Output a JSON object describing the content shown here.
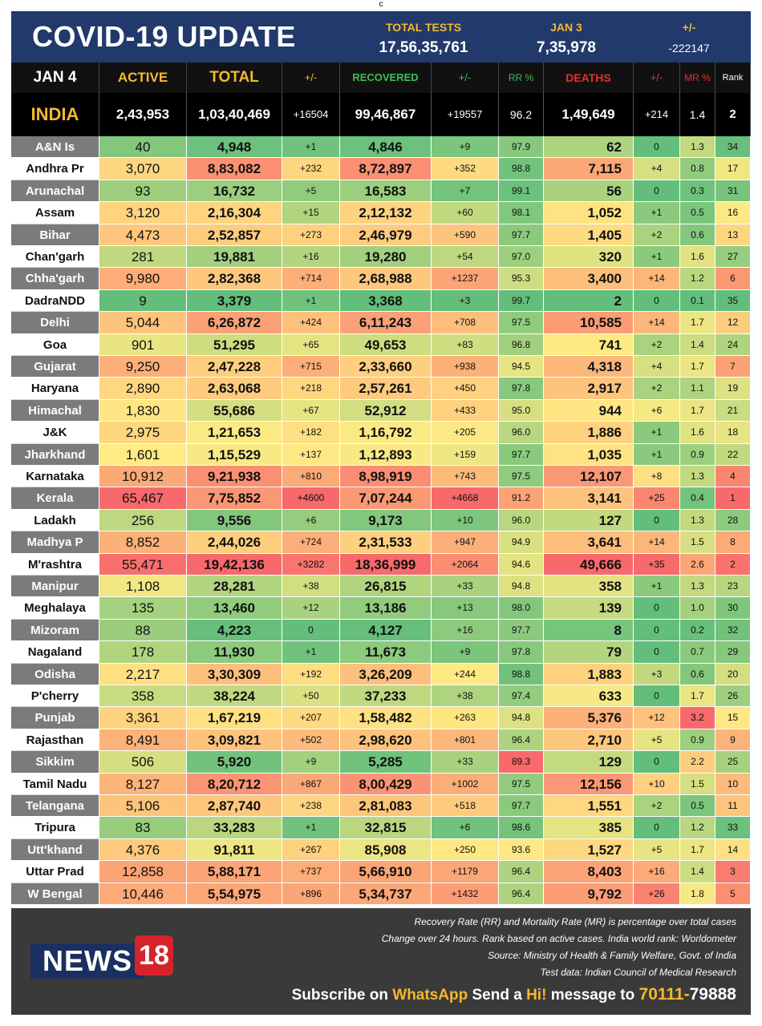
{
  "top_mark": "c",
  "header": {
    "title": "COVID-19 UPDATE",
    "total_tests_label": "TOTAL TESTS",
    "total_tests_value": "17,56,35,761",
    "date_label": "JAN 3",
    "date_value": "7,35,978",
    "change_label": "+/-",
    "change_value": "-222147"
  },
  "columns": {
    "date": "JAN 4",
    "active": "ACTIVE",
    "total": "TOTAL",
    "total_change": "+/-",
    "recovered": "RECOVERED",
    "recovered_change": "+/-",
    "rr": "RR %",
    "deaths": "DEATHS",
    "deaths_change": "+/-",
    "mr": "MR %",
    "rank": "Rank"
  },
  "colors": {
    "header_bg": "#22396b",
    "accent_yellow": "#f5b82e",
    "recovered_green": "#3fbf4f",
    "deaths_red": "#e8312a",
    "footer_bg": "#3a3a3a",
    "news_red": "#d6232a"
  },
  "india": {
    "name": "INDIA",
    "active": "2,43,953",
    "total": "1,03,40,469",
    "total_change": "+16504",
    "recovered": "99,46,867",
    "recovered_change": "+19557",
    "rr": "96.2",
    "deaths": "1,49,649",
    "deaths_change": "+214",
    "mr": "1.4",
    "rank": "2"
  },
  "states": [
    {
      "name": "A&N Is",
      "active": "40",
      "total": "4,948",
      "total_change": "+1",
      "recovered": "4,846",
      "recovered_change": "+9",
      "rr": "97.9",
      "deaths": "62",
      "deaths_change": "0",
      "mr": "1.3",
      "rank": "34"
    },
    {
      "name": "Andhra Pr",
      "active": "3,070",
      "total": "8,83,082",
      "total_change": "+232",
      "recovered": "8,72,897",
      "recovered_change": "+352",
      "rr": "98.8",
      "deaths": "7,115",
      "deaths_change": "+4",
      "mr": "0.8",
      "rank": "17"
    },
    {
      "name": "Arunachal",
      "active": "93",
      "total": "16,732",
      "total_change": "+5",
      "recovered": "16,583",
      "recovered_change": "+7",
      "rr": "99.1",
      "deaths": "56",
      "deaths_change": "0",
      "mr": "0.3",
      "rank": "31"
    },
    {
      "name": "Assam",
      "active": "3,120",
      "total": "2,16,304",
      "total_change": "+15",
      "recovered": "2,12,132",
      "recovered_change": "+60",
      "rr": "98.1",
      "deaths": "1,052",
      "deaths_change": "+1",
      "mr": "0.5",
      "rank": "16"
    },
    {
      "name": "Bihar",
      "active": "4,473",
      "total": "2,52,857",
      "total_change": "+273",
      "recovered": "2,46,979",
      "recovered_change": "+590",
      "rr": "97.7",
      "deaths": "1,405",
      "deaths_change": "+2",
      "mr": "0.6",
      "rank": "13"
    },
    {
      "name": "Chan'garh",
      "active": "281",
      "total": "19,881",
      "total_change": "+16",
      "recovered": "19,280",
      "recovered_change": "+54",
      "rr": "97.0",
      "deaths": "320",
      "deaths_change": "+1",
      "mr": "1.6",
      "rank": "27"
    },
    {
      "name": "Chha'garh",
      "active": "9,980",
      "total": "2,82,368",
      "total_change": "+714",
      "recovered": "2,68,988",
      "recovered_change": "+1237",
      "rr": "95.3",
      "deaths": "3,400",
      "deaths_change": "+14",
      "mr": "1.2",
      "rank": "6"
    },
    {
      "name": "DadraNDD",
      "active": "9",
      "total": "3,379",
      "total_change": "+1",
      "recovered": "3,368",
      "recovered_change": "+3",
      "rr": "99.7",
      "deaths": "2",
      "deaths_change": "0",
      "mr": "0.1",
      "rank": "35"
    },
    {
      "name": "Delhi",
      "active": "5,044",
      "total": "6,26,872",
      "total_change": "+424",
      "recovered": "6,11,243",
      "recovered_change": "+708",
      "rr": "97.5",
      "deaths": "10,585",
      "deaths_change": "+14",
      "mr": "1.7",
      "rank": "12"
    },
    {
      "name": "Goa",
      "active": "901",
      "total": "51,295",
      "total_change": "+65",
      "recovered": "49,653",
      "recovered_change": "+83",
      "rr": "96.8",
      "deaths": "741",
      "deaths_change": "+2",
      "mr": "1.4",
      "rank": "24"
    },
    {
      "name": "Gujarat",
      "active": "9,250",
      "total": "2,47,228",
      "total_change": "+715",
      "recovered": "2,33,660",
      "recovered_change": "+938",
      "rr": "94.5",
      "deaths": "4,318",
      "deaths_change": "+4",
      "mr": "1.7",
      "rank": "7"
    },
    {
      "name": "Haryana",
      "active": "2,890",
      "total": "2,63,068",
      "total_change": "+218",
      "recovered": "2,57,261",
      "recovered_change": "+450",
      "rr": "97.8",
      "deaths": "2,917",
      "deaths_change": "+2",
      "mr": "1.1",
      "rank": "19"
    },
    {
      "name": "Himachal",
      "active": "1,830",
      "total": "55,686",
      "total_change": "+67",
      "recovered": "52,912",
      "recovered_change": "+433",
      "rr": "95.0",
      "deaths": "944",
      "deaths_change": "+6",
      "mr": "1.7",
      "rank": "21"
    },
    {
      "name": "J&K",
      "active": "2,975",
      "total": "1,21,653",
      "total_change": "+182",
      "recovered": "1,16,792",
      "recovered_change": "+205",
      "rr": "96.0",
      "deaths": "1,886",
      "deaths_change": "+1",
      "mr": "1.6",
      "rank": "18"
    },
    {
      "name": "Jharkhand",
      "active": "1,601",
      "total": "1,15,529",
      "total_change": "+137",
      "recovered": "1,12,893",
      "recovered_change": "+159",
      "rr": "97.7",
      "deaths": "1,035",
      "deaths_change": "+1",
      "mr": "0.9",
      "rank": "22"
    },
    {
      "name": "Karnataka",
      "active": "10,912",
      "total": "9,21,938",
      "total_change": "+810",
      "recovered": "8,98,919",
      "recovered_change": "+743",
      "rr": "97.5",
      "deaths": "12,107",
      "deaths_change": "+8",
      "mr": "1.3",
      "rank": "4"
    },
    {
      "name": "Kerala",
      "active": "65,467",
      "total": "7,75,852",
      "total_change": "+4600",
      "recovered": "7,07,244",
      "recovered_change": "+4668",
      "rr": "91.2",
      "deaths": "3,141",
      "deaths_change": "+25",
      "mr": "0.4",
      "rank": "1"
    },
    {
      "name": "Ladakh",
      "active": "256",
      "total": "9,556",
      "total_change": "+6",
      "recovered": "9,173",
      "recovered_change": "+10",
      "rr": "96.0",
      "deaths": "127",
      "deaths_change": "0",
      "mr": "1.3",
      "rank": "28"
    },
    {
      "name": "Madhya P",
      "active": "8,852",
      "total": "2,44,026",
      "total_change": "+724",
      "recovered": "2,31,533",
      "recovered_change": "+947",
      "rr": "94.9",
      "deaths": "3,641",
      "deaths_change": "+14",
      "mr": "1.5",
      "rank": "8"
    },
    {
      "name": "M'rashtra",
      "active": "55,471",
      "total": "19,42,136",
      "total_change": "+3282",
      "recovered": "18,36,999",
      "recovered_change": "+2064",
      "rr": "94.6",
      "deaths": "49,666",
      "deaths_change": "+35",
      "mr": "2.6",
      "rank": "2"
    },
    {
      "name": "Manipur",
      "active": "1,108",
      "total": "28,281",
      "total_change": "+38",
      "recovered": "26,815",
      "recovered_change": "+33",
      "rr": "94.8",
      "deaths": "358",
      "deaths_change": "+1",
      "mr": "1.3",
      "rank": "23"
    },
    {
      "name": "Meghalaya",
      "active": "135",
      "total": "13,460",
      "total_change": "+12",
      "recovered": "13,186",
      "recovered_change": "+13",
      "rr": "98.0",
      "deaths": "139",
      "deaths_change": "0",
      "mr": "1.0",
      "rank": "30"
    },
    {
      "name": "Mizoram",
      "active": "88",
      "total": "4,223",
      "total_change": "0",
      "recovered": "4,127",
      "recovered_change": "+16",
      "rr": "97.7",
      "deaths": "8",
      "deaths_change": "0",
      "mr": "0.2",
      "rank": "32"
    },
    {
      "name": "Nagaland",
      "active": "178",
      "total": "11,930",
      "total_change": "+1",
      "recovered": "11,673",
      "recovered_change": "+9",
      "rr": "97.8",
      "deaths": "79",
      "deaths_change": "0",
      "mr": "0.7",
      "rank": "29"
    },
    {
      "name": "Odisha",
      "active": "2,217",
      "total": "3,30,309",
      "total_change": "+192",
      "recovered": "3,26,209",
      "recovered_change": "+244",
      "rr": "98.8",
      "deaths": "1,883",
      "deaths_change": "+3",
      "mr": "0.6",
      "rank": "20"
    },
    {
      "name": "P'cherry",
      "active": "358",
      "total": "38,224",
      "total_change": "+50",
      "recovered": "37,233",
      "recovered_change": "+38",
      "rr": "97.4",
      "deaths": "633",
      "deaths_change": "0",
      "mr": "1.7",
      "rank": "26"
    },
    {
      "name": "Punjab",
      "active": "3,361",
      "total": "1,67,219",
      "total_change": "+207",
      "recovered": "1,58,482",
      "recovered_change": "+263",
      "rr": "94.8",
      "deaths": "5,376",
      "deaths_change": "+12",
      "mr": "3.2",
      "rank": "15"
    },
    {
      "name": "Rajasthan",
      "active": "8,491",
      "total": "3,09,821",
      "total_change": "+502",
      "recovered": "2,98,620",
      "recovered_change": "+801",
      "rr": "96.4",
      "deaths": "2,710",
      "deaths_change": "+5",
      "mr": "0.9",
      "rank": "9"
    },
    {
      "name": "Sikkim",
      "active": "506",
      "total": "5,920",
      "total_change": "+9",
      "recovered": "5,285",
      "recovered_change": "+33",
      "rr": "89.3",
      "deaths": "129",
      "deaths_change": "0",
      "mr": "2.2",
      "rank": "25"
    },
    {
      "name": "Tamil Nadu",
      "active": "8,127",
      "total": "8,20,712",
      "total_change": "+867",
      "recovered": "8,00,429",
      "recovered_change": "+1002",
      "rr": "97.5",
      "deaths": "12,156",
      "deaths_change": "+10",
      "mr": "1.5",
      "rank": "10"
    },
    {
      "name": "Telangana",
      "active": "5,106",
      "total": "2,87,740",
      "total_change": "+238",
      "recovered": "2,81,083",
      "recovered_change": "+518",
      "rr": "97.7",
      "deaths": "1,551",
      "deaths_change": "+2",
      "mr": "0.5",
      "rank": "11"
    },
    {
      "name": "Tripura",
      "active": "83",
      "total": "33,283",
      "total_change": "+1",
      "recovered": "32,815",
      "recovered_change": "+6",
      "rr": "98.6",
      "deaths": "385",
      "deaths_change": "0",
      "mr": "1.2",
      "rank": "33"
    },
    {
      "name": "Utt'khand",
      "active": "4,376",
      "total": "91,811",
      "total_change": "+267",
      "recovered": "85,908",
      "recovered_change": "+250",
      "rr": "93.6",
      "deaths": "1,527",
      "deaths_change": "+5",
      "mr": "1.7",
      "rank": "14"
    },
    {
      "name": "Uttar Prad",
      "active": "12,858",
      "total": "5,88,171",
      "total_change": "+737",
      "recovered": "5,66,910",
      "recovered_change": "+1179",
      "rr": "96.4",
      "deaths": "8,403",
      "deaths_change": "+16",
      "mr": "1.4",
      "rank": "3"
    },
    {
      "name": "W Bengal",
      "active": "10,446",
      "total": "5,54,975",
      "total_change": "+896",
      "recovered": "5,34,737",
      "recovered_change": "+1432",
      "rr": "96.4",
      "deaths": "9,792",
      "deaths_change": "+26",
      "mr": "1.8",
      "rank": "5"
    }
  ],
  "footer": {
    "note1": "Recovery Rate (RR) and Mortality Rate (MR) is percentage over total cases",
    "note2": "Change over 24 hours. Rank based on active cases. India world rank: Worldometer",
    "note3": "Source: Ministry of Health & Family Welfare, Govt. of India",
    "note4": "Test data: Indian Council of Medical Research",
    "logo_text": "NEWS",
    "logo_number": "18",
    "subscribe_1": "Subscribe on",
    "subscribe_whatsapp": "WhatsApp",
    "subscribe_2": "Send a",
    "subscribe_hi": "Hi!",
    "subscribe_3": "message to",
    "phone_part1": "70111-",
    "phone_part2": "79888"
  }
}
